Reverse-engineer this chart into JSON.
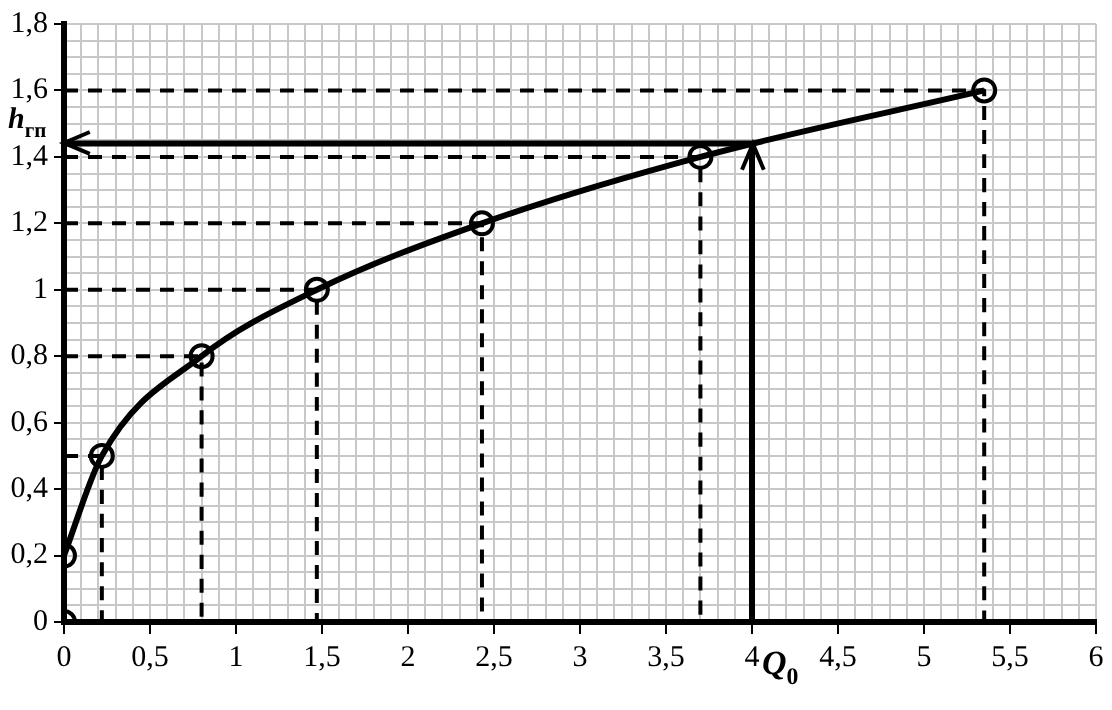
{
  "chart_data": {
    "type": "line",
    "xlim": [
      0,
      6
    ],
    "ylim": [
      0,
      1.8
    ],
    "grid": true,
    "legend": false,
    "xticks": [
      0,
      {
        "value": 0.1,
        "label": null
      },
      {
        "value": 0.2,
        "label": null
      },
      {
        "value": 0.3,
        "label": null
      },
      {
        "value": 0.4,
        "label": null
      },
      {
        "value": 0.5,
        "label": "0,5"
      },
      {
        "value": 0.6,
        "label": null
      },
      {
        "value": 0.7,
        "label": null
      },
      {
        "value": 0.8,
        "label": null
      },
      {
        "value": 0.9,
        "label": null
      },
      1,
      {
        "value": 1.1,
        "label": null
      },
      {
        "value": 1.2,
        "label": null
      },
      {
        "value": 1.3,
        "label": null
      },
      {
        "value": 1.4,
        "label": null
      },
      {
        "value": 1.5,
        "label": "1,5"
      },
      {
        "value": 1.6,
        "label": null
      },
      {
        "value": 1.7,
        "label": null
      },
      {
        "value": 1.8,
        "label": null
      },
      {
        "value": 1.9,
        "label": null
      },
      2,
      {
        "value": 2.1,
        "label": null
      },
      {
        "value": 2.2,
        "label": null
      },
      {
        "value": 2.3,
        "label": null
      },
      {
        "value": 2.4,
        "label": null
      },
      {
        "value": 2.5,
        "label": "2,5"
      },
      {
        "value": 2.6,
        "label": null
      },
      {
        "value": 2.7,
        "label": null
      },
      {
        "value": 2.8,
        "label": null
      },
      {
        "value": 2.9,
        "label": null
      },
      3,
      {
        "value": 3.1,
        "label": null
      },
      {
        "value": 3.2,
        "label": null
      },
      {
        "value": 3.3,
        "label": null
      },
      {
        "value": 3.4,
        "label": null
      },
      {
        "value": 3.5,
        "label": "3,5"
      },
      {
        "value": 3.6,
        "label": null
      },
      {
        "value": 3.7,
        "label": null
      },
      {
        "value": 3.8,
        "label": null
      },
      {
        "value": 3.9,
        "label": null
      },
      4,
      {
        "value": 4.1,
        "label": null
      },
      {
        "value": 4.2,
        "label": null
      },
      {
        "value": 4.3,
        "label": null
      },
      {
        "value": 4.4,
        "label": null
      },
      {
        "value": 4.5,
        "label": "4,5"
      },
      {
        "value": 4.6,
        "label": null
      },
      {
        "value": 4.7,
        "label": null
      },
      {
        "value": 4.8,
        "label": null
      },
      {
        "value": 4.9,
        "label": null
      },
      5,
      {
        "value": 5.1,
        "label": null
      },
      {
        "value": 5.2,
        "label": null
      },
      {
        "value": 5.3,
        "label": null
      },
      {
        "value": 5.4,
        "label": null
      },
      {
        "value": 5.5,
        "label": "5,5"
      },
      {
        "value": 5.6,
        "label": null
      },
      {
        "value": 5.7,
        "label": null
      },
      {
        "value": 5.8,
        "label": null
      },
      {
        "value": 5.9,
        "label": null
      },
      6
    ],
    "yticks": [
      0,
      {
        "value": 0.05,
        "label": null
      },
      {
        "value": 0.1,
        "label": null
      },
      {
        "value": 0.15,
        "label": null
      },
      {
        "value": 0.2,
        "label": "0,2"
      },
      {
        "value": 0.25,
        "label": null
      },
      {
        "value": 0.3,
        "label": null
      },
      {
        "value": 0.35,
        "label": null
      },
      {
        "value": 0.4,
        "label": "0,4"
      },
      {
        "value": 0.45,
        "label": null
      },
      {
        "value": 0.5,
        "label": null
      },
      {
        "value": 0.55,
        "label": null
      },
      {
        "value": 0.6,
        "label": "0,6"
      },
      {
        "value": 0.65,
        "label": null
      },
      {
        "value": 0.7,
        "label": null
      },
      {
        "value": 0.75,
        "label": null
      },
      {
        "value": 0.8,
        "label": "0,8"
      },
      {
        "value": 0.85,
        "label": null
      },
      {
        "value": 0.9,
        "label": null
      },
      {
        "value": 0.95,
        "label": null
      },
      1,
      {
        "value": 1.05,
        "label": null
      },
      {
        "value": 1.1,
        "label": null
      },
      {
        "value": 1.15,
        "label": null
      },
      {
        "value": 1.2,
        "label": "1,2"
      },
      {
        "value": 1.25,
        "label": null
      },
      {
        "value": 1.3,
        "label": null
      },
      {
        "value": 1.35,
        "label": null
      },
      {
        "value": 1.4,
        "label": "1,4"
      },
      {
        "value": 1.45,
        "label": null
      },
      {
        "value": 1.5,
        "label": null
      },
      {
        "value": 1.55,
        "label": null
      },
      {
        "value": 1.6,
        "label": "1,6"
      },
      {
        "value": 1.65,
        "label": null
      },
      {
        "value": 1.7,
        "label": null
      },
      {
        "value": 1.75,
        "label": null
      },
      {
        "value": 1.8,
        "label": "1,8"
      }
    ],
    "series": [
      {
        "type": "line",
        "color": "#000000",
        "marker": "circle",
        "line_style": "solid",
        "x": [
          0,
          0.22,
          0.8,
          1.47,
          2.43,
          3.7,
          5.35
        ],
        "values": [
          0.2,
          0.5,
          0.8,
          1,
          1.2,
          1.4,
          1.6
        ]
      },
      {
        "type": "scatter",
        "color": "#000000",
        "marker": "circle",
        "x": [
          0
        ],
        "values": [
          0
        ]
      },
      {
        "type": "line",
        "color": "#000000",
        "marker": "none",
        "line_style": "dashed",
        "x": [
          0,
          0.22,
          0.22
        ],
        "values": [
          0.5,
          0.5,
          0
        ]
      },
      {
        "type": "line",
        "color": "#000000",
        "marker": "none",
        "line_style": "dashed",
        "x": [
          0,
          0.8,
          0.8
        ],
        "values": [
          0.8,
          0.8,
          0
        ]
      },
      {
        "type": "line",
        "color": "#000000",
        "marker": "none",
        "line_style": "dashed",
        "x": [
          0,
          1.47,
          1.47
        ],
        "values": [
          1,
          1,
          0
        ]
      },
      {
        "type": "line",
        "color": "#000000",
        "marker": "none",
        "line_style": "dashed",
        "x": [
          0,
          2.43,
          2.43
        ],
        "values": [
          1.2,
          1.2,
          0
        ]
      },
      {
        "type": "line",
        "color": "#000000",
        "marker": "none",
        "line_style": "dashed",
        "x": [
          0,
          3.7,
          3.7
        ],
        "values": [
          1.4,
          1.4,
          0
        ]
      },
      {
        "type": "line",
        "color": "#000000",
        "marker": "none",
        "line_style": "dashed",
        "x": [
          0,
          5.35,
          5.35
        ],
        "values": [
          1.6,
          1.6,
          0
        ]
      }
    ],
    "ref_lines": [
      {
        "axis": "x",
        "value": 4,
        "label": "Q$_{0}$",
        "color": "#000000",
        "line_style": "solid"
      },
      {
        "axis": "y",
        "value": 1.44,
        "label": "h$_{гп}$",
        "color": "#000000",
        "line_style": "solid"
      }
    ]
  }
}
